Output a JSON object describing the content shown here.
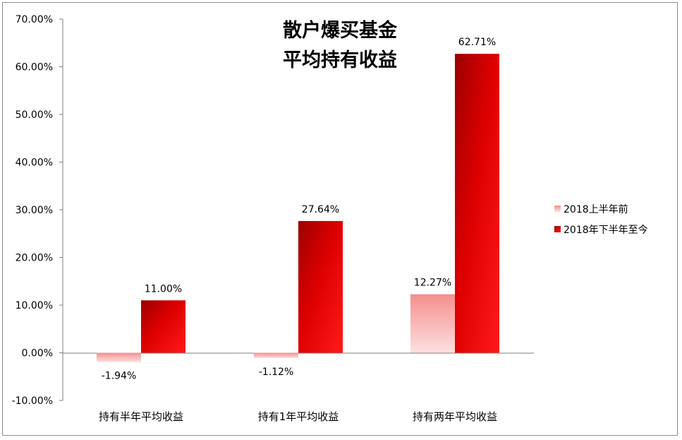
{
  "chart_data": {
    "type": "bar",
    "title_lines": [
      "散户爆买基金",
      "平均持有收益"
    ],
    "categories": [
      "持有半年平均收益",
      "持有1年平均收益",
      "持有两年平均收益"
    ],
    "series": [
      {
        "name": "2018上半年前",
        "values": [
          -1.94,
          -1.12,
          12.27
        ],
        "labels": [
          "-1.94%",
          "-1.12%",
          "12.27%"
        ],
        "color": "#f7a1a1"
      },
      {
        "name": "2018年下半年至今",
        "values": [
          11.0,
          27.64,
          62.71
        ],
        "labels": [
          "11.00%",
          "27.64%",
          "62.71%"
        ],
        "color": "#e00000"
      }
    ],
    "ylim": [
      -10,
      70
    ],
    "y_ticks": [
      -10,
      0,
      10,
      20,
      30,
      40,
      50,
      60,
      70
    ],
    "y_tick_labels": [
      "-10.00%",
      "0.00%",
      "10.00%",
      "20.00%",
      "30.00%",
      "40.00%",
      "50.00%",
      "60.00%",
      "70.00%"
    ],
    "xlabel": "",
    "ylabel": "",
    "legend_position": "right",
    "grid": false
  }
}
